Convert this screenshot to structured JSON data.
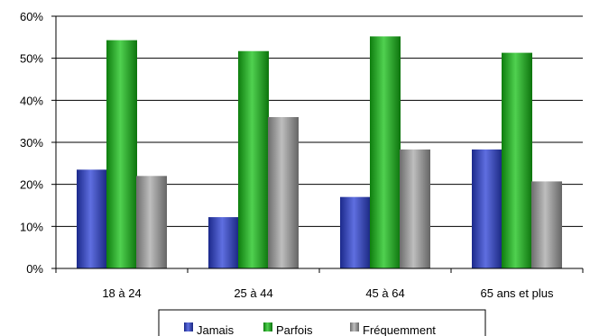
{
  "chart_data": {
    "type": "bar",
    "categories": [
      "18 à 24",
      "25 à 44",
      "45 à 64",
      "65 ans et plus"
    ],
    "series": [
      {
        "name": "Jamais",
        "values": [
          23.5,
          12.2,
          17.0,
          28.3
        ],
        "color": "#2a3fd6"
      },
      {
        "name": "Parfois",
        "values": [
          54.3,
          51.7,
          55.2,
          51.3
        ],
        "color": "#16c116"
      },
      {
        "name": "Fréquemment",
        "values": [
          22.0,
          36.0,
          28.3,
          20.7
        ],
        "color": "#a8a8a8"
      }
    ],
    "ylim": [
      0,
      60
    ],
    "yticks": [
      "0%",
      "10%",
      "20%",
      "30%",
      "40%",
      "50%",
      "60%"
    ],
    "grid": true,
    "legend_position": "bottom"
  }
}
